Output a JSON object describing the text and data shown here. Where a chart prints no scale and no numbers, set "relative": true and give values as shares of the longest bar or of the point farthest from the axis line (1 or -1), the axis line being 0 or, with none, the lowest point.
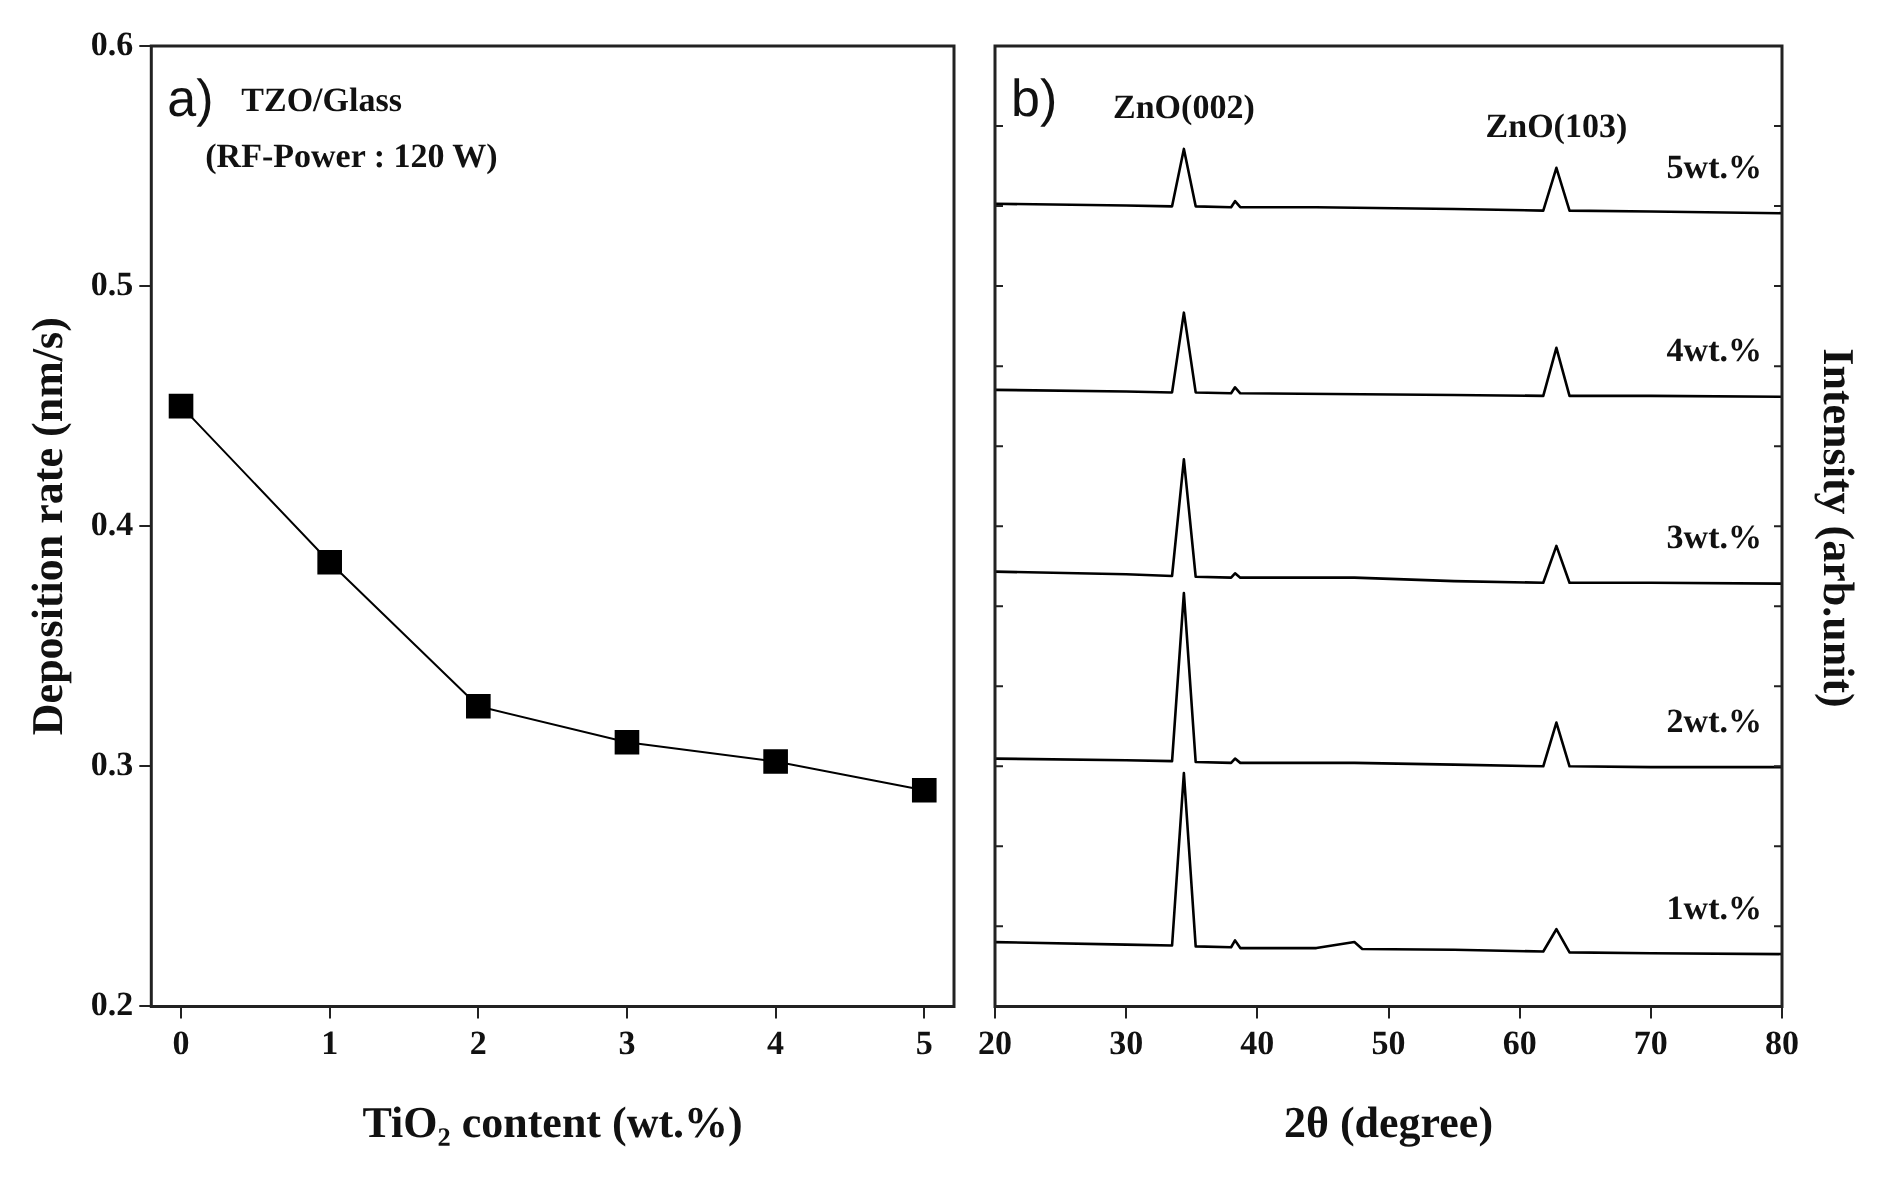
{
  "chart_data": [
    {
      "type": "line",
      "xlabel": "TiO₂ content (wt.%)",
      "ylabel": "Deposition rate (nm/s)",
      "x": [
        0,
        1,
        2,
        3,
        4,
        5
      ],
      "xlim": [
        -0.2,
        5.2
      ],
      "xticks": [
        0,
        1,
        2,
        3,
        4,
        5
      ],
      "ylim": [
        0.2,
        0.6
      ],
      "yticks": [
        0.2,
        0.3,
        0.4,
        0.5,
        0.6
      ],
      "marker": "square",
      "line_style": "solid",
      "series": [
        {
          "color": "#000000",
          "values": [
            0.45,
            0.385,
            0.325,
            0.31,
            0.302,
            0.29
          ]
        }
      ],
      "annotations": [
        "a)",
        "TZO/Glass",
        "(RF-Power : 120 W)"
      ]
    },
    {
      "type": "line",
      "relative": true,
      "xlabel": "2θ (degree)",
      "ylabel": "Intensity (arb.unit)",
      "xlim": [
        20,
        80
      ],
      "xticks": [
        20,
        30,
        40,
        50,
        60,
        70,
        80
      ],
      "marker": "none",
      "line_style": "solid",
      "series": [
        {
          "name": "5wt.%",
          "color": "#000000",
          "x": [
            20,
            30,
            33.5,
            34.4,
            35.3,
            38,
            38.3,
            38.7,
            44.5,
            55,
            61.8,
            62.8,
            63.8,
            70,
            80
          ],
          "values": [
            0.936,
            0.934,
            0.933,
            1,
            0.933,
            0.932,
            0.939,
            0.932,
            0.932,
            0.93,
            0.928,
            0.978,
            0.928,
            0.927,
            0.925
          ]
        },
        {
          "name": "4wt.%",
          "color": "#000000",
          "x": [
            20,
            30,
            33.5,
            34.4,
            35.3,
            38,
            38.3,
            38.7,
            55,
            61.8,
            62.8,
            63.8,
            70,
            80
          ],
          "values": [
            0.719,
            0.717,
            0.716,
            0.809,
            0.716,
            0.715,
            0.722,
            0.715,
            0.713,
            0.712,
            0.768,
            0.712,
            0.712,
            0.711
          ]
        },
        {
          "name": "3wt.%",
          "color": "#000000",
          "x": [
            20,
            30,
            33.5,
            34.4,
            35.3,
            38,
            38.3,
            38.7,
            47.4,
            55,
            61.8,
            62.8,
            63.8,
            70,
            80
          ],
          "values": [
            0.507,
            0.504,
            0.502,
            0.638,
            0.501,
            0.5,
            0.505,
            0.5,
            0.5,
            0.496,
            0.494,
            0.537,
            0.494,
            0.494,
            0.493
          ]
        },
        {
          "name": "2wt.%",
          "color": "#000000",
          "x": [
            20,
            30,
            33.5,
            34.4,
            35.3,
            38,
            38.3,
            38.7,
            47.4,
            55,
            61.8,
            62.8,
            63.8,
            70,
            80
          ],
          "values": [
            0.289,
            0.287,
            0.286,
            0.482,
            0.285,
            0.284,
            0.289,
            0.284,
            0.284,
            0.282,
            0.28,
            0.331,
            0.28,
            0.279,
            0.279
          ]
        },
        {
          "name": "1wt.%",
          "color": "#000000",
          "x": [
            20,
            30,
            33.5,
            34.4,
            35.3,
            38,
            38.3,
            38.7,
            44.5,
            47.4,
            48,
            55,
            61.8,
            62.8,
            63.8,
            70,
            80
          ],
          "values": [
            0.075,
            0.072,
            0.071,
            0.272,
            0.07,
            0.069,
            0.077,
            0.068,
            0.068,
            0.075,
            0.067,
            0.066,
            0.064,
            0.09,
            0.063,
            0.062,
            0.061
          ]
        }
      ],
      "annotations": [
        "b)",
        {
          "text": "ZnO(002)",
          "x": 34.4,
          "y": 1
        },
        {
          "text": "ZnO(103)",
          "x": 62.8,
          "y": 0.978
        }
      ]
    }
  ]
}
